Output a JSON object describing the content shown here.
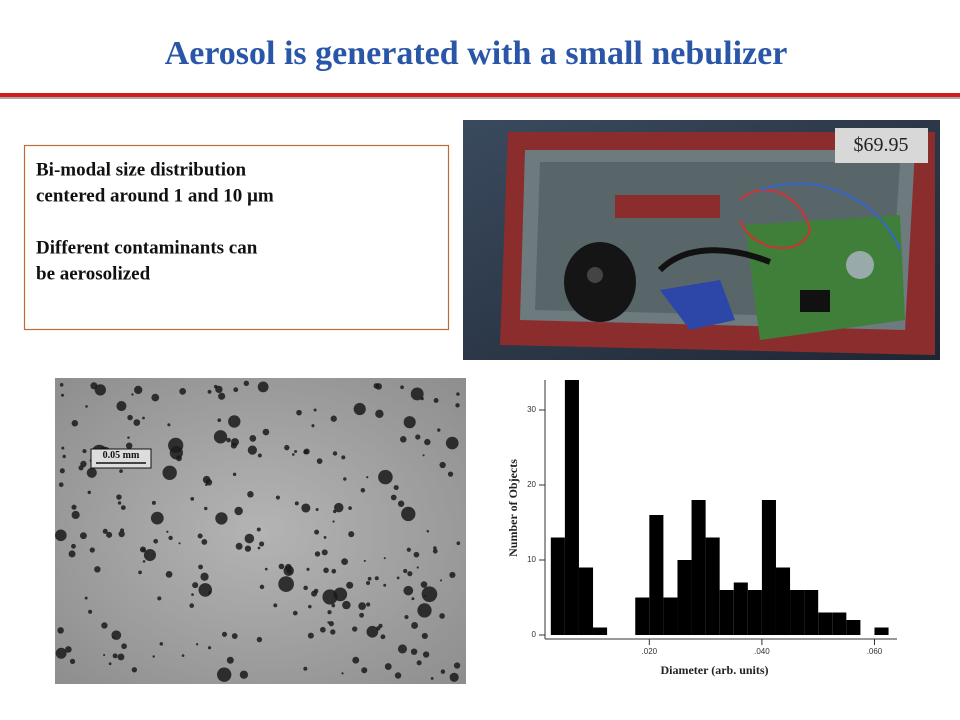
{
  "slide": {
    "title": "Aerosol is generated with a small nebulizer",
    "text_box": {
      "paragraphs": [
        [
          "Bi-modal size distribution",
          "centered around 1 and 10 µm"
        ],
        [
          "Different contaminants can",
          "be aerosolized"
        ]
      ]
    },
    "price_label": "$69.95",
    "micrograph_scale": "0.05 mm",
    "histogram": {
      "type": "histogram",
      "x_label": "Diameter (arb. units)",
      "y_label": "Number of Objects",
      "bins": [
        0.0025,
        0.005,
        0.0075,
        0.01,
        0.0125,
        0.015,
        0.0175,
        0.02,
        0.0225,
        0.025,
        0.0275,
        0.03,
        0.0325,
        0.035,
        0.0375,
        0.04,
        0.0425,
        0.045,
        0.0475,
        0.05,
        0.0525,
        0.055,
        0.0575,
        0.06,
        0.0625
      ],
      "counts": [
        13,
        34,
        9,
        1,
        0,
        0,
        5,
        16,
        5,
        10,
        18,
        13,
        6,
        7,
        6,
        18,
        9,
        6,
        6,
        3,
        3,
        2,
        0,
        1
      ],
      "color": "#000000",
      "xlim": [
        0.002,
        0.064
      ],
      "ylim": [
        0,
        34
      ],
      "xticks": [
        {
          "value": 0.02,
          "label": ".020"
        },
        {
          "value": 0.04,
          "label": ".040"
        },
        {
          "value": 0.06,
          "label": ".060"
        }
      ],
      "yticks": [
        0,
        10,
        20,
        30
      ]
    }
  }
}
